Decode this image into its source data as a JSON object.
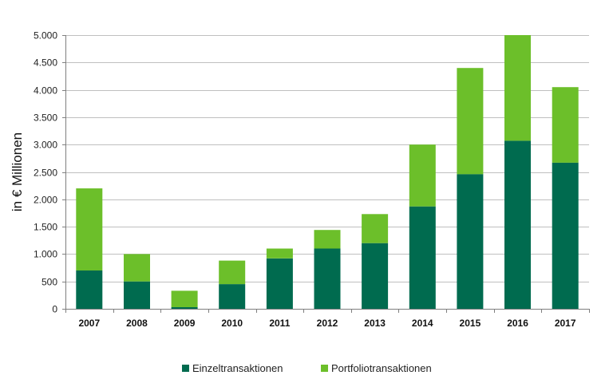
{
  "chart_data": {
    "type": "bar",
    "stacked": true,
    "categories": [
      "2007",
      "2008",
      "2009",
      "2010",
      "2011",
      "2012",
      "2013",
      "2014",
      "2015",
      "2016",
      "2017"
    ],
    "series": [
      {
        "name": "Einzeltransaktionen",
        "values": [
          700,
          500,
          30,
          450,
          920,
          1100,
          1200,
          1870,
          2460,
          3070,
          2670
        ],
        "color": "#006b4f"
      },
      {
        "name": "Portfoliotransaktionen",
        "values": [
          1500,
          500,
          300,
          430,
          180,
          340,
          530,
          1130,
          1940,
          1930,
          1380
        ],
        "color": "#6cbf2a"
      }
    ],
    "ylabel": "in € Millionen",
    "ylim": [
      0,
      5000
    ],
    "yticks": [
      0,
      500,
      1000,
      1500,
      2000,
      2500,
      3000,
      3500,
      4000,
      4500,
      5000
    ],
    "ytick_labels": [
      "0",
      "500",
      "1.000",
      "1.500",
      "2.000",
      "2.500",
      "3.000",
      "3.500",
      "4.000",
      "4.500",
      "5.000"
    ],
    "grid": true,
    "legend_position": "bottom"
  }
}
